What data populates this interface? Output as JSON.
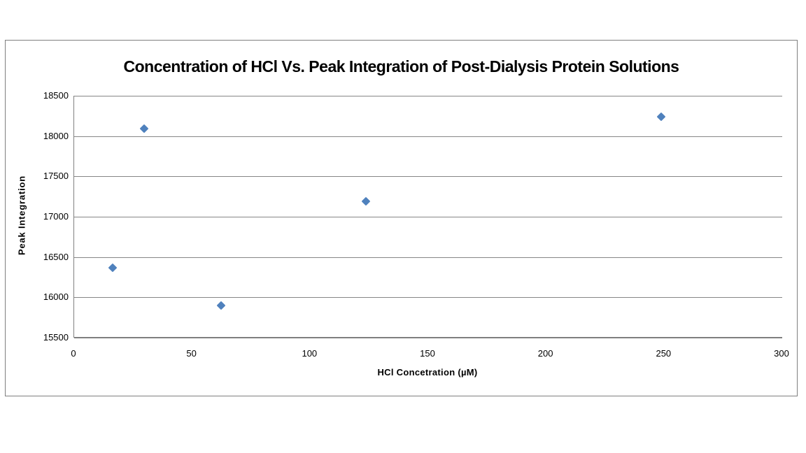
{
  "chart_data": {
    "type": "scatter",
    "title": "Concentration of HCl Vs. Peak Integration of Post-Dialysis Protein Solutions",
    "xlabel": "HCl Concetration (µM)",
    "ylabel": "Peak Integration",
    "points": [
      {
        "x": 16.5,
        "y": 16370
      },
      {
        "x": 30,
        "y": 18090
      },
      {
        "x": 62.5,
        "y": 15900
      },
      {
        "x": 124,
        "y": 17190
      },
      {
        "x": 249,
        "y": 18240
      }
    ],
    "xlim": [
      0,
      300
    ],
    "ylim": [
      15500,
      18500
    ],
    "x_ticks": [
      "0",
      "50",
      "100",
      "150",
      "200",
      "250",
      "300"
    ],
    "y_ticks": [
      "18500",
      "18000",
      "17500",
      "17000",
      "16500",
      "16000",
      "15500"
    ],
    "grid": "horizontal-major-only",
    "legend_position": "none",
    "marker_shape": "diamond",
    "marker_color": "#4F81BD",
    "gridline_color": "#868686",
    "frame_border_color": "#7F7F7F",
    "background_color": "#FFFFFF",
    "text_color": "#000000"
  }
}
